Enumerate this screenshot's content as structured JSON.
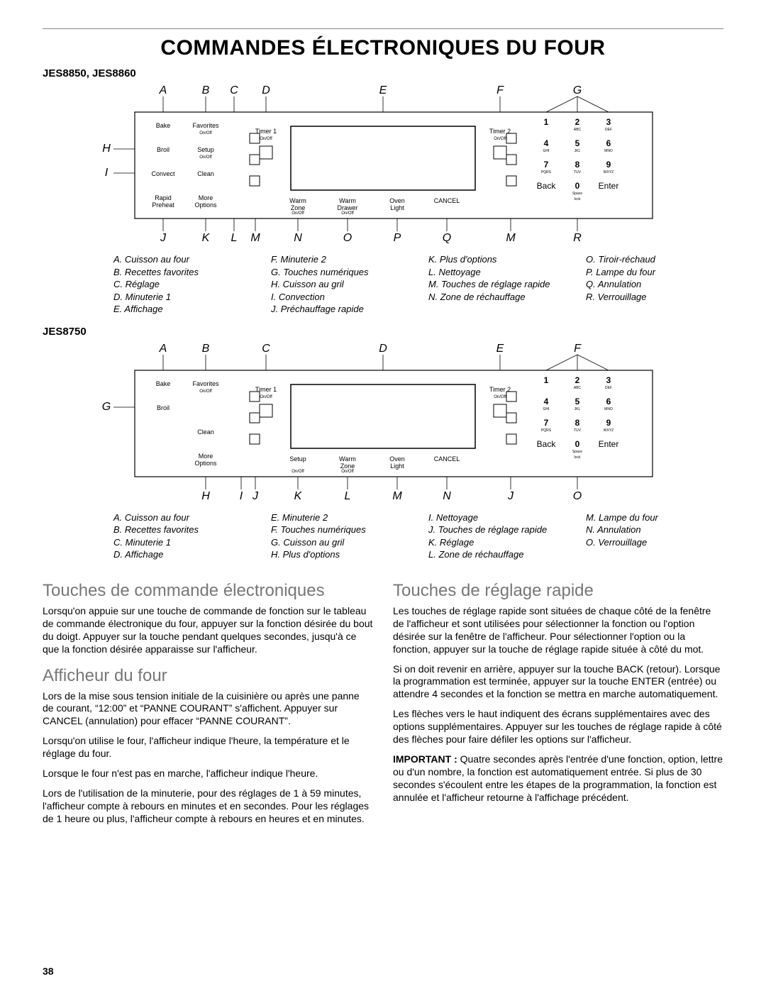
{
  "page_number": "38",
  "title": "COMMANDES ÉLECTRONIQUES DU FOUR",
  "models": {
    "m1": "JES8850, JES8860",
    "m2": "JES8750"
  },
  "panel1": {
    "top_letters": [
      "A",
      "B",
      "C",
      "D",
      "E",
      "F",
      "G"
    ],
    "bottom_letters": [
      "J",
      "K",
      "L",
      "M",
      "N",
      "O",
      "P",
      "Q",
      "M",
      "R"
    ],
    "left_letters": [
      "H",
      "I"
    ],
    "col_left": [
      "Bake",
      "Broil",
      "Convect",
      "Rapid\nPreheat"
    ],
    "col_left2": [
      "Favorites",
      "Setup",
      "Clean",
      "More\nOptions"
    ],
    "sub_left2": [
      "On/Off",
      "On/Off",
      "",
      ""
    ],
    "timer_left": "Timer 1",
    "timer_left_sub": "On/Off",
    "timer_right": "Timer 2",
    "timer_right_sub": "On/Off",
    "lower_mid": [
      "Warm\nZone",
      "Warm\nDrawer",
      "Oven\nLight",
      "CANCEL"
    ],
    "lower_mid_sub": [
      "On/Off",
      "On/Off",
      "",
      ""
    ],
    "keypad": {
      "keys": [
        "1",
        "2",
        "3",
        "4",
        "5",
        "6",
        "7",
        "8",
        "9",
        "Back",
        "0",
        "Enter"
      ],
      "subs": [
        "",
        "ABC",
        "DEF",
        "GHI",
        "JKL",
        "MNO",
        "PQRS",
        "TUV",
        "WXYZ",
        "",
        "Space",
        ""
      ],
      "lock_label": "lock"
    }
  },
  "legend1": {
    "c1": [
      "A. Cuisson au four",
      "B. Recettes favorites",
      "C. Réglage",
      "D. Minuterie 1",
      "E. Affichage"
    ],
    "c2": [
      "F. Minuterie 2",
      "G. Touches numériques",
      "H. Cuisson au gril",
      "I. Convection",
      "J. Préchauffage rapide"
    ],
    "c3": [
      "K. Plus d'options",
      "L. Nettoyage",
      "M. Touches de réglage rapide",
      "N. Zone de réchauffage"
    ],
    "c4": [
      "O. Tiroir-réchaud",
      "P. Lampe du four",
      "Q. Annulation",
      "R. Verrouillage"
    ]
  },
  "panel2": {
    "top_letters": [
      "A",
      "B",
      "C",
      "D",
      "E",
      "F"
    ],
    "bottom_letters": [
      "H",
      "I",
      "J",
      "K",
      "L",
      "M",
      "N",
      "J",
      "O"
    ],
    "left_letters": [
      "G"
    ],
    "col_left": [
      "Bake",
      "Broil",
      ""
    ],
    "col_left2": [
      "Favorites",
      "",
      "Clean",
      "More\nOptions"
    ],
    "sub_left2": [
      "On/Off",
      "",
      "",
      ""
    ],
    "timer_left": "Timer 1",
    "timer_left_sub": "On/Off",
    "timer_right": "Timer 2",
    "timer_right_sub": "On/Off",
    "lower_mid": [
      "Setup",
      "Warm\nZone",
      "Oven\nLight",
      "CANCEL"
    ],
    "lower_mid_sub": [
      "On/Off",
      "On/Off",
      "",
      ""
    ],
    "keypad": {
      "keys": [
        "1",
        "2",
        "3",
        "4",
        "5",
        "6",
        "7",
        "8",
        "9",
        "Back",
        "0",
        "Enter"
      ],
      "subs": [
        "",
        "ABC",
        "DEF",
        "GHI",
        "JKL",
        "MNO",
        "PQRS",
        "TUV",
        "WXYZ",
        "",
        "Space",
        ""
      ],
      "lock_label": "lock"
    }
  },
  "legend2": {
    "c1": [
      "A. Cuisson au four",
      "B. Recettes favorites",
      "C. Minuterie 1",
      "D. Affichage"
    ],
    "c2": [
      "E. Minuterie 2",
      "F. Touches numériques",
      "G. Cuisson au gril",
      "H. Plus d'options"
    ],
    "c3": [
      "I. Nettoyage",
      "J. Touches de réglage rapide",
      "K. Réglage",
      "L. Zone de réchauffage"
    ],
    "c4": [
      "M. Lampe du four",
      "N. Annulation",
      "O. Verrouillage"
    ]
  },
  "sections": {
    "s1_title": "Touches de commande électroniques",
    "s1_p1": "Lorsqu'on appuie sur une touche de commande de fonction sur le tableau de commande électronique du four, appuyer sur la fonction désirée du bout du doigt. Appuyer sur la touche pendant quelques secondes, jusqu'à ce que la fonction désirée apparaisse sur l'afficheur.",
    "s2_title": "Afficheur du four",
    "s2_p1": "Lors de la mise sous tension initiale de la cuisinière ou après une panne de courant, “12:00” et “PANNE COURANT” s'affichent. Appuyer sur CANCEL (annulation) pour effacer “PANNE COURANT”.",
    "s2_p2": "Lorsqu'on utilise le four, l'afficheur indique l'heure, la température et le réglage du four.",
    "s2_p3": "Lorsque le four n'est pas en marche, l'afficheur indique l'heure.",
    "s2_p4": "Lors de l'utilisation de la minuterie, pour des réglages de 1 à 59 minutes, l'afficheur compte à rebours en minutes et en secondes. Pour les réglages de 1 heure ou plus, l'afficheur compte à rebours en heures et en minutes.",
    "s3_title": "Touches de réglage rapide",
    "s3_p1": "Les touches de réglage rapide sont situées de chaque côté de la fenêtre de l'afficheur et sont utilisées pour sélectionner la fonction ou l'option désirée sur la fenêtre de l'afficheur. Pour sélectionner l'option ou la fonction, appuyer sur la touche de réglage rapide située à côté du mot.",
    "s3_p2": "Si on doit revenir en arrière, appuyer sur la touche BACK (retour). Lorsque la programmation est terminée, appuyer sur la touche ENTER (entrée) ou attendre 4 secondes et la fonction se mettra en marche automatiquement.",
    "s3_p3": "Les flèches vers le haut indiquent des écrans supplémentaires avec des options supplémentaires. Appuyer sur les touches de réglage rapide à côté des flèches pour faire défiler les options sur l'afficheur.",
    "s3_p4a": "IMPORTANT :",
    "s3_p4b": " Quatre secondes après l'entrée d'une fonction, option, lettre ou d'un nombre, la fonction est automatiquement entrée. Si plus de 30 secondes s'écoulent entre les étapes de la programmation, la fonction est annulée et l'afficheur retourne à l'affichage précédent."
  },
  "style": {
    "panel_stroke": "#000",
    "panel_stroke_w": 1,
    "letter_font": 16,
    "label_font": 9,
    "sub_font": 6,
    "keypad_font": 12,
    "keypad_sub_font": 5
  }
}
